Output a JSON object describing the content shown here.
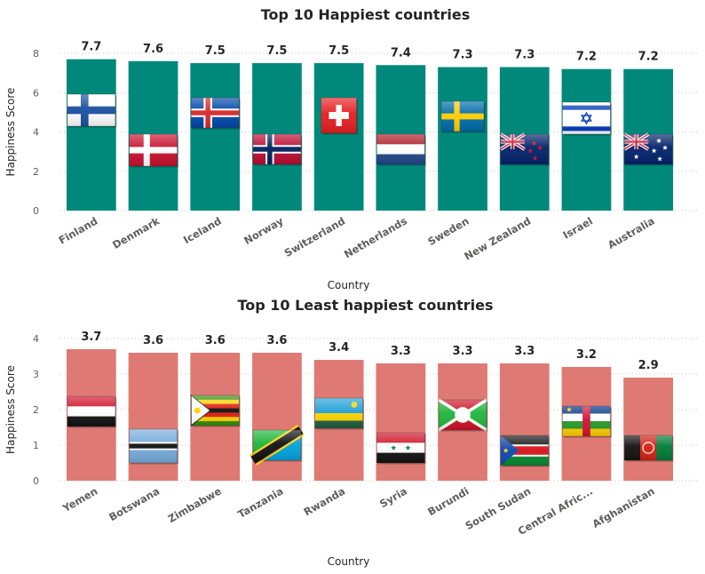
{
  "chart_data": [
    {
      "type": "bar",
      "title": "Top 10 Happiest countries",
      "xlabel": "Country",
      "ylabel": "Happiness Score",
      "ylim": [
        0,
        8
      ],
      "yticks": [
        0,
        2,
        4,
        6,
        8
      ],
      "grid": true,
      "bar_color": "#00897B",
      "categories": [
        "Finland",
        "Denmark",
        "Iceland",
        "Norway",
        "Switzerland",
        "Netherlands",
        "Sweden",
        "New Zealand",
        "Israel",
        "Australia"
      ],
      "values": [
        7.7,
        7.6,
        7.5,
        7.5,
        7.5,
        7.4,
        7.3,
        7.3,
        7.2,
        7.2
      ],
      "data_labels": [
        "7.7",
        "7.6",
        "7.5",
        "7.5",
        "7.5",
        "7.4",
        "7.3",
        "7.3",
        "7.2",
        "7.2"
      ],
      "flags": [
        "finland-flag-icon",
        "denmark-flag-icon",
        "iceland-flag-icon",
        "norway-flag-icon",
        "switzerland-flag-icon",
        "netherlands-flag-icon",
        "sweden-flag-icon",
        "new-zealand-flag-icon",
        "israel-flag-icon",
        "australia-flag-icon"
      ]
    },
    {
      "type": "bar",
      "title": "Top 10 Least happiest countries",
      "xlabel": "Country",
      "ylabel": "Happiness Score",
      "ylim": [
        0,
        4
      ],
      "yticks": [
        0,
        1,
        2,
        3,
        4
      ],
      "grid": true,
      "bar_color": "#DE7A73",
      "categories": [
        "Yemen",
        "Botswana",
        "Zimbabwe",
        "Tanzania",
        "Rwanda",
        "Syria",
        "Burundi",
        "South Sudan",
        "Central Afric...",
        "Afghanistan"
      ],
      "values": [
        3.7,
        3.6,
        3.6,
        3.6,
        3.4,
        3.3,
        3.3,
        3.3,
        3.2,
        2.9
      ],
      "data_labels": [
        "3.7",
        "3.6",
        "3.6",
        "3.6",
        "3.4",
        "3.3",
        "3.3",
        "3.3",
        "3.2",
        "2.9"
      ],
      "flags": [
        "yemen-flag-icon",
        "botswana-flag-icon",
        "zimbabwe-flag-icon",
        "tanzania-flag-icon",
        "rwanda-flag-icon",
        "syria-flag-icon",
        "burundi-flag-icon",
        "south-sudan-flag-icon",
        "central-african-republic-flag-icon",
        "afghanistan-flag-icon"
      ]
    }
  ]
}
